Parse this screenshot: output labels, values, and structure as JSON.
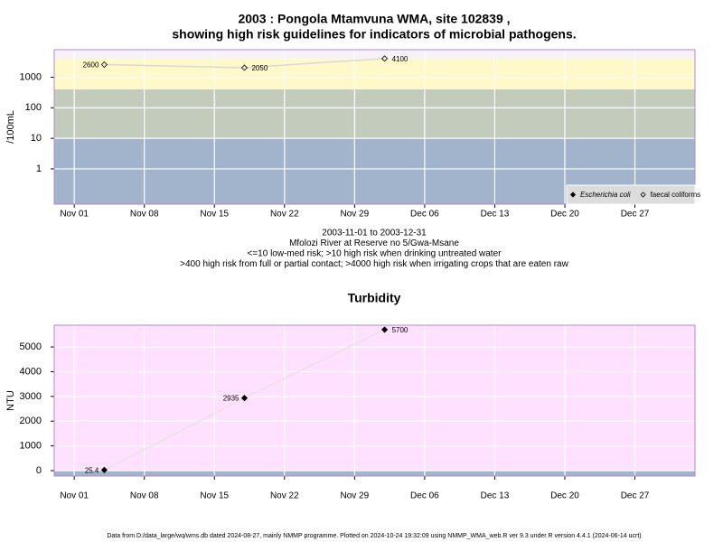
{
  "footer": "Data from D:/data_large/wq/wms.db dated 2024-08-27, mainly NMMP programme. Plotted on 2024-10-24 19:32:09 using NMMP_WMA_web.R ver 9.3 under R version 4.4.1 (2024-06-14 ucrt)",
  "chart_data": [
    {
      "type": "line",
      "title": [
        "2003 : Pongola Mtamvuna WMA, site 102839 ,",
        "showing high risk guidelines for indicators of microbial pathogens."
      ],
      "annotations": [
        "2003-11-01 to 2003-12-31",
        "Mfolozi River at Reserve no 5/Gwa-Msane",
        "<=10 low-med risk; >10 high risk when drinking untreated water",
        ">400 high risk from full or partial contact; >4000 high risk when irrigating crops that are eaten raw"
      ],
      "y_label": "/100mL",
      "log_y": true,
      "x": [
        "2003-11-04",
        "2003-11-18",
        "2003-12-02"
      ],
      "series": [
        {
          "name": "Escherichia coli",
          "marker": "filled-diamond",
          "color": "#000000",
          "values": [
            null,
            null,
            null
          ]
        },
        {
          "name": "faecal coliforms",
          "marker": "open-diamond",
          "color": "#000000",
          "values": [
            2600,
            2050,
            4100
          ]
        }
      ],
      "xlim": [
        "2003-10-30",
        "2004-01-02"
      ],
      "xticks": [
        {
          "value": "2003-11-01",
          "label": "Nov 01"
        },
        {
          "value": "2003-11-08",
          "label": "Nov 08"
        },
        {
          "value": "2003-11-15",
          "label": "Nov 15"
        },
        {
          "value": "2003-11-22",
          "label": "Nov 22"
        },
        {
          "value": "2003-11-29",
          "label": "Nov 29"
        },
        {
          "value": "2003-12-06",
          "label": "Dec 06"
        },
        {
          "value": "2003-12-13",
          "label": "Dec 13"
        },
        {
          "value": "2003-12-20",
          "label": "Dec 20"
        },
        {
          "value": "2003-12-27",
          "label": "Dec 27"
        }
      ],
      "ylim": [
        0.07,
        8000
      ],
      "yticks": [
        1,
        10,
        100,
        1000
      ],
      "bands": [
        {
          "from": 0.07,
          "to": 10,
          "color": "#a2b3cc"
        },
        {
          "from": 10,
          "to": 400,
          "color": "#c3cbbd"
        },
        {
          "from": 400,
          "to": 4000,
          "color": "#fff8c8"
        },
        {
          "from": 4000,
          "to": 8000,
          "color": "#f6f2f8"
        }
      ],
      "line_color": "#d8d8d8",
      "grid": true,
      "legend": "bottom-right"
    },
    {
      "type": "line",
      "title": [
        "Turbidity"
      ],
      "y_label": "NTU",
      "log_y": false,
      "x": [
        "2003-11-04",
        "2003-11-18",
        "2003-12-02"
      ],
      "series": [
        {
          "marker": "filled-diamond",
          "color": "#000000",
          "values": [
            25.4,
            2935,
            5700
          ]
        }
      ],
      "xlim": [
        "2003-10-30",
        "2004-01-02"
      ],
      "xticks": [
        {
          "value": "2003-11-01",
          "label": "Nov 01"
        },
        {
          "value": "2003-11-08",
          "label": "Nov 08"
        },
        {
          "value": "2003-11-15",
          "label": "Nov 15"
        },
        {
          "value": "2003-11-22",
          "label": "Nov 22"
        },
        {
          "value": "2003-11-29",
          "label": "Nov 29"
        },
        {
          "value": "2003-12-06",
          "label": "Dec 06"
        },
        {
          "value": "2003-12-13",
          "label": "Dec 13"
        },
        {
          "value": "2003-12-20",
          "label": "Dec 20"
        },
        {
          "value": "2003-12-27",
          "label": "Dec 27"
        }
      ],
      "ylim": [
        -220,
        5880
      ],
      "yticks": [
        0,
        1000,
        2000,
        3000,
        4000,
        5000
      ],
      "bands": [
        {
          "from": -220,
          "to": 0,
          "color": "#a2b3cc"
        },
        {
          "from": 0,
          "to": 5880,
          "color": "#ffe0ff"
        }
      ],
      "line_color": "#e4e4e4",
      "grid": true
    }
  ]
}
